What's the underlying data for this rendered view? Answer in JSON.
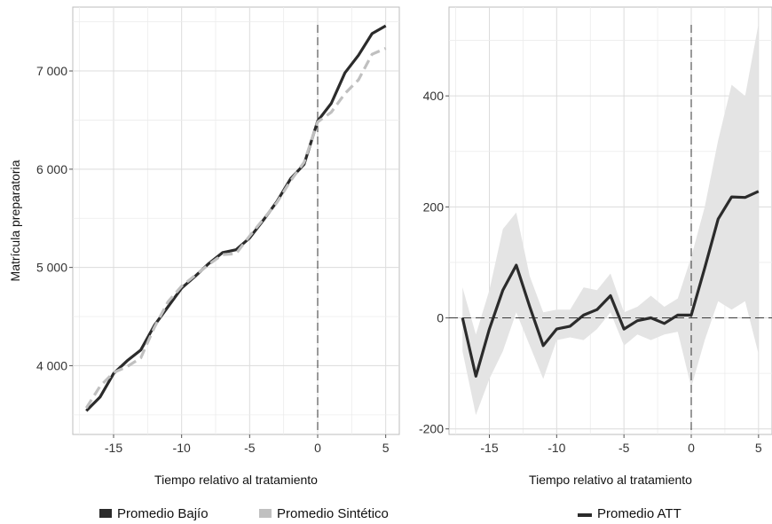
{
  "chart_data": [
    {
      "type": "line",
      "xlabel": "Tiempo relativo al tratamiento",
      "ylabel": "Matrícula preparatoria",
      "xlim": [
        -18,
        6
      ],
      "ylim": [
        3300,
        7650
      ],
      "xticks": [
        -15,
        -10,
        -5,
        0,
        5
      ],
      "xtick_labels": [
        "-15",
        "-10",
        "-5",
        "0",
        "5"
      ],
      "yticks": [
        4000,
        5000,
        6000,
        7000
      ],
      "ytick_labels": [
        "4 000",
        "5 000",
        "6 000",
        "7 000"
      ],
      "vline": 0,
      "grid": true,
      "legend_position": "bottom",
      "x": [
        -17,
        -16,
        -15,
        -14,
        -13,
        -12,
        -11,
        -10,
        -9,
        -8,
        -7,
        -6,
        -5,
        -4,
        -3,
        -2,
        -1,
        0,
        1,
        2,
        3,
        4,
        5
      ],
      "series": [
        {
          "name": "Promedio Bajío",
          "color": "#2b2b2b",
          "dash": "solid",
          "values": [
            3540,
            3680,
            3920,
            4050,
            4160,
            4410,
            4600,
            4790,
            4910,
            5040,
            5150,
            5180,
            5300,
            5480,
            5670,
            5900,
            6050,
            6490,
            6670,
            6980,
            7160,
            7380,
            7460
          ]
        },
        {
          "name": "Promedio Sintético",
          "color": "#c0c0c0",
          "dash": "dashed",
          "values": [
            3570,
            3790,
            3930,
            3990,
            4080,
            4390,
            4650,
            4810,
            4920,
            5030,
            5130,
            5140,
            5320,
            5490,
            5660,
            5880,
            6070,
            6480,
            6580,
            6770,
            6910,
            7170,
            7230
          ]
        }
      ]
    },
    {
      "type": "line",
      "xlabel": "Tiempo relativo al tratamiento",
      "ylabel": "",
      "xlim": [
        -18,
        6
      ],
      "ylim": [
        -210,
        560
      ],
      "xticks": [
        -15,
        -10,
        -5,
        0,
        5
      ],
      "xtick_labels": [
        "-15",
        "-10",
        "-5",
        "0",
        "5"
      ],
      "yticks": [
        -200,
        0,
        200,
        400
      ],
      "ytick_labels": [
        "-200",
        "0",
        "200",
        "400"
      ],
      "vline": 0,
      "hline": 0,
      "grid": true,
      "legend_position": "bottom",
      "x": [
        -17,
        -16,
        -15,
        -14,
        -13,
        -12,
        -11,
        -10,
        -9,
        -8,
        -7,
        -6,
        -5,
        -4,
        -3,
        -2,
        -1,
        0,
        1,
        2,
        3,
        4,
        5
      ],
      "series": [
        {
          "name": "Promedio ATT",
          "color": "#2b2b2b",
          "dash": "solid",
          "values": [
            0,
            -105,
            -20,
            50,
            95,
            20,
            -50,
            -20,
            -15,
            5,
            15,
            40,
            -20,
            -5,
            0,
            -10,
            5,
            5,
            90,
            178,
            218,
            217,
            228
          ],
          "ci_lower": [
            -60,
            -175,
            -110,
            -60,
            10,
            -50,
            -110,
            -40,
            -35,
            -40,
            -20,
            10,
            -50,
            -30,
            -40,
            -30,
            -25,
            -125,
            -40,
            30,
            15,
            30,
            -65
          ],
          "ci_upper": [
            55,
            -30,
            50,
            160,
            190,
            75,
            10,
            15,
            15,
            55,
            50,
            80,
            10,
            20,
            40,
            20,
            35,
            110,
            200,
            320,
            420,
            400,
            530
          ]
        }
      ]
    }
  ],
  "legends": {
    "left": [
      {
        "label": "Promedio Bajío",
        "color": "#2b2b2b"
      },
      {
        "label": "Promedio Sintético",
        "color": "#c0c0c0"
      }
    ],
    "right": [
      {
        "label": "Promedio ATT",
        "color": "#2b2b2b"
      }
    ]
  }
}
